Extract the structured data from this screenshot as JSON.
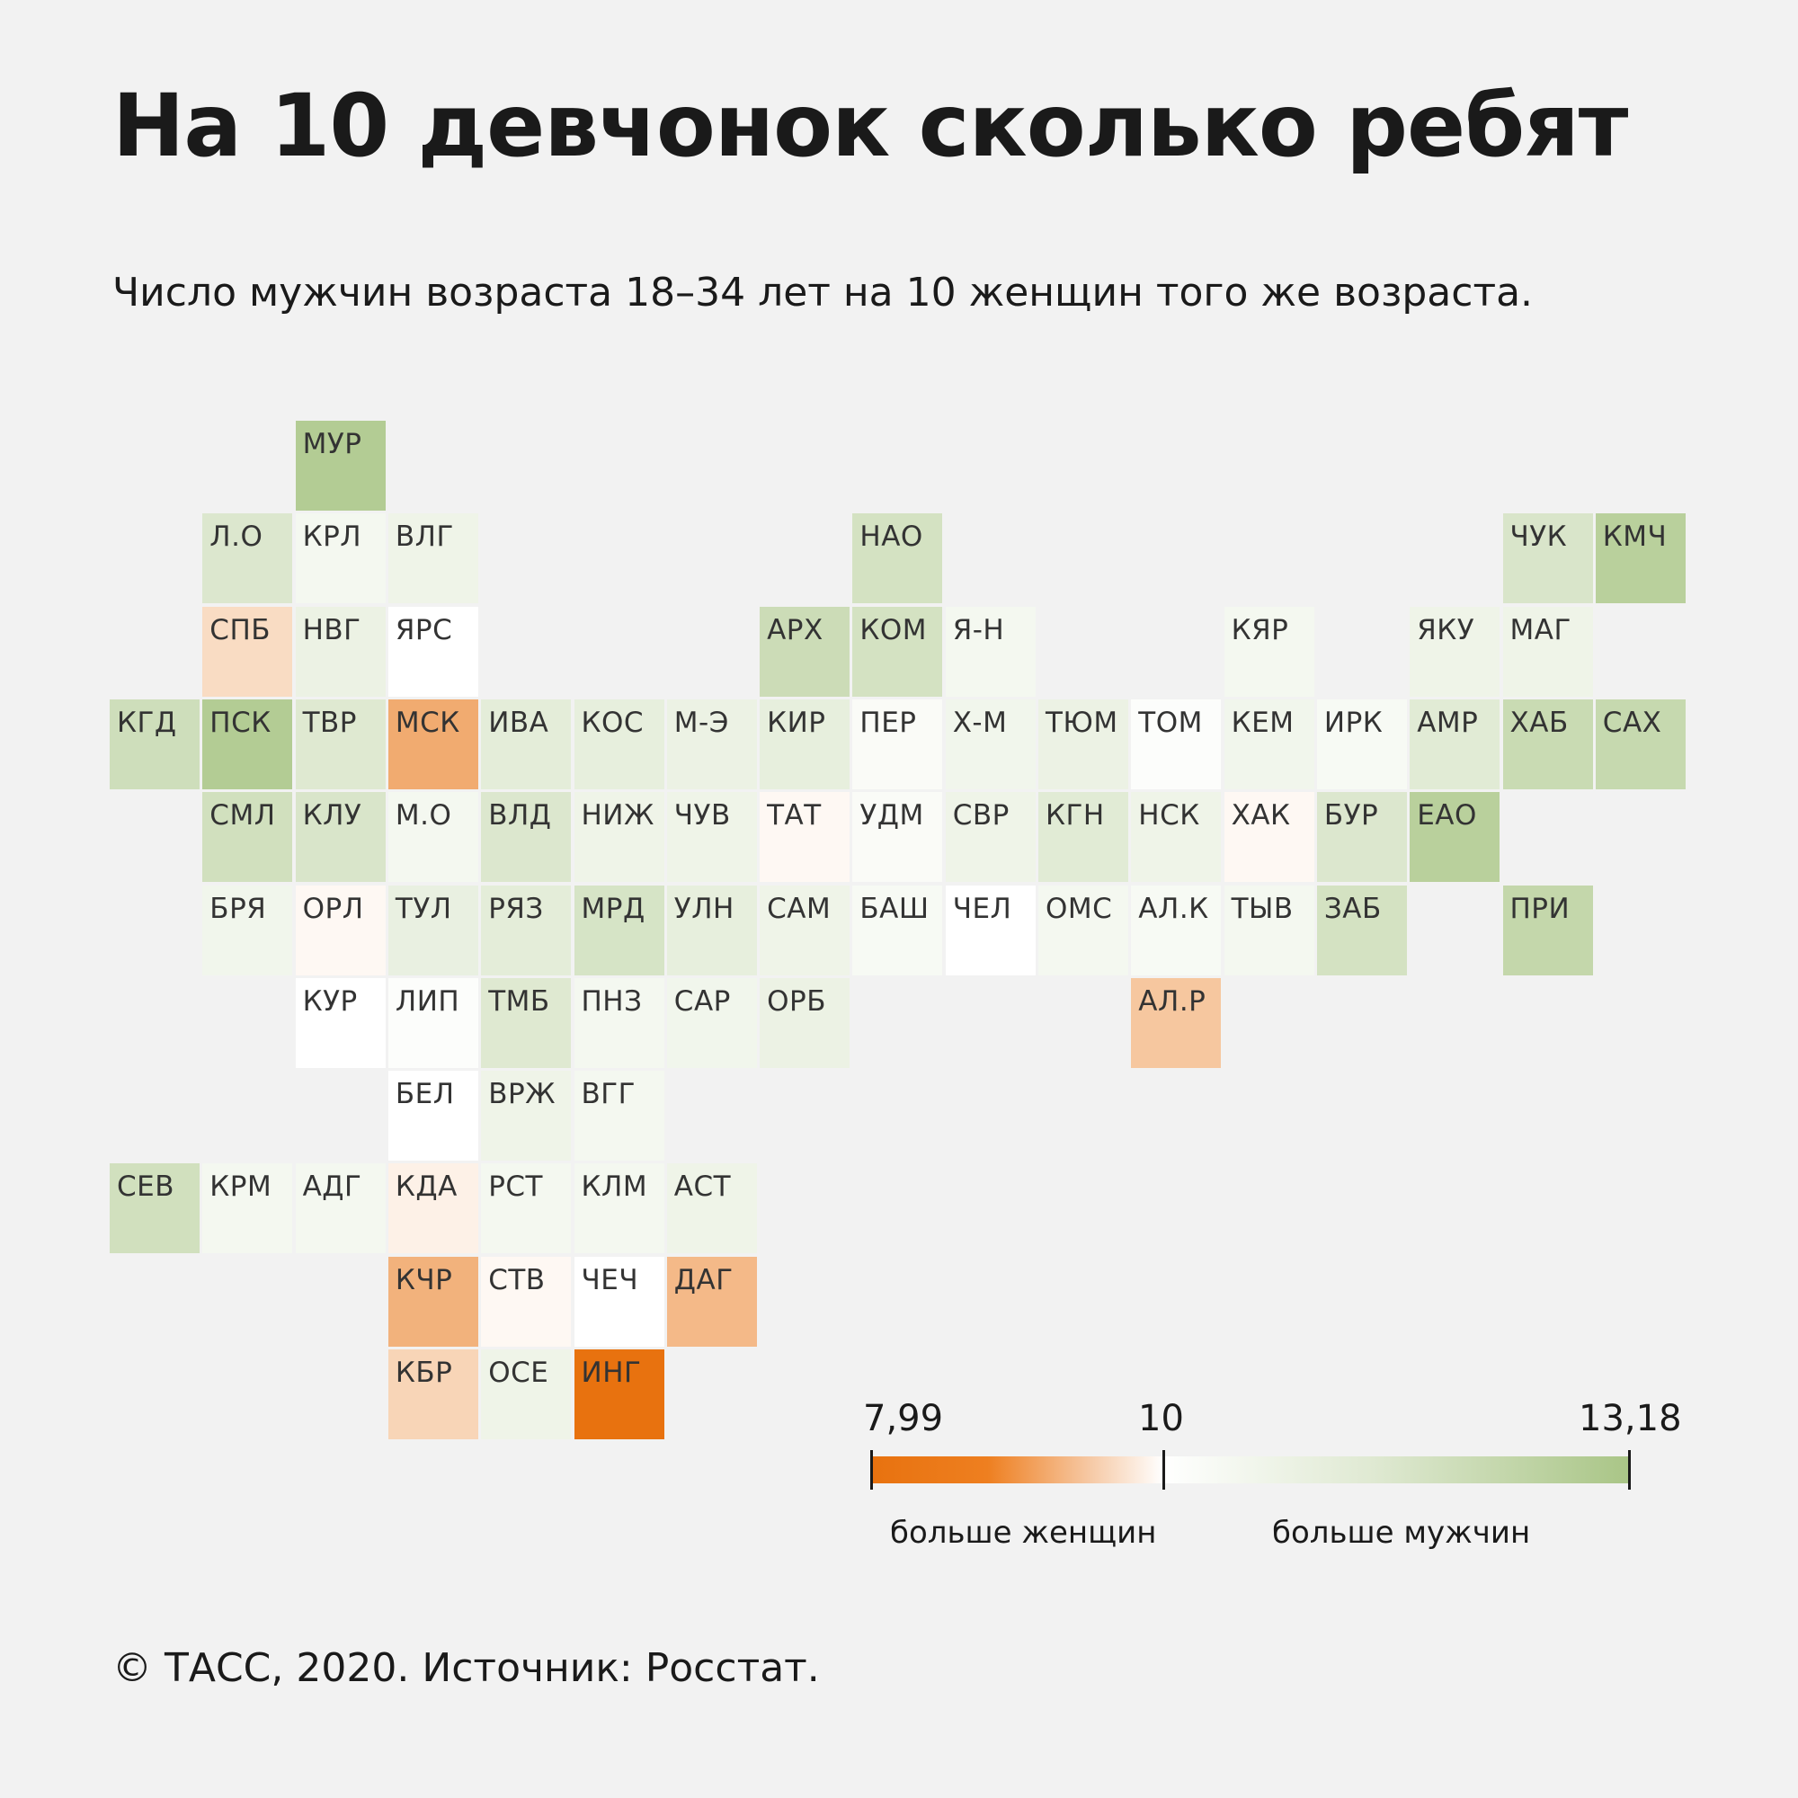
{
  "header": {
    "title": "На 10 девчонок сколько ребят",
    "subtitle": "Число мужчин возраста 18–34 лет на 10 женщин того же возраста."
  },
  "legend": {
    "min": "7,99",
    "mid": "10",
    "max": "13,18",
    "less_label": "больше женщин",
    "more_label": "больше мужчин",
    "colors": {
      "low": "#e8720f",
      "mid": "#ffffff",
      "high": "#a9c586"
    }
  },
  "footer": {
    "source": "© ТАСС, 2020. Источник: Росстат."
  },
  "map_data": {
    "type": "tile-map",
    "scale": {
      "min": 7.99,
      "mid": 10,
      "max": 13.18
    },
    "tiles": [
      {
        "label": "МУР",
        "row": 0,
        "col": 2,
        "value": 12.8
      },
      {
        "label": "Л.О",
        "row": 1,
        "col": 1,
        "value": 11.3
      },
      {
        "label": "КРЛ",
        "row": 1,
        "col": 2,
        "value": 10.4
      },
      {
        "label": "ВЛГ",
        "row": 1,
        "col": 3,
        "value": 10.6
      },
      {
        "label": "НАО",
        "row": 1,
        "col": 8,
        "value": 11.6
      },
      {
        "label": "ЧУК",
        "row": 1,
        "col": 15,
        "value": 11.4
      },
      {
        "label": "КМЧ",
        "row": 1,
        "col": 16,
        "value": 12.6
      },
      {
        "label": "СПБ",
        "row": 2,
        "col": 1,
        "value": 9.5
      },
      {
        "label": "НВГ",
        "row": 2,
        "col": 2,
        "value": 10.7
      },
      {
        "label": "ЯРС",
        "row": 2,
        "col": 3,
        "value": 10.0
      },
      {
        "label": "АРХ",
        "row": 2,
        "col": 7,
        "value": 11.9
      },
      {
        "label": "КОМ",
        "row": 2,
        "col": 8,
        "value": 11.6
      },
      {
        "label": "Я-Н",
        "row": 2,
        "col": 9,
        "value": 10.4
      },
      {
        "label": "КЯР",
        "row": 2,
        "col": 12,
        "value": 10.4
      },
      {
        "label": "ЯКУ",
        "row": 2,
        "col": 14,
        "value": 10.6
      },
      {
        "label": "МАГ",
        "row": 2,
        "col": 15,
        "value": 10.6
      },
      {
        "label": "КГД",
        "row": 3,
        "col": 0,
        "value": 11.8
      },
      {
        "label": "ПСК",
        "row": 3,
        "col": 1,
        "value": 12.8
      },
      {
        "label": "ТВР",
        "row": 3,
        "col": 2,
        "value": 11.2
      },
      {
        "label": "МСК",
        "row": 3,
        "col": 3,
        "value": 8.8
      },
      {
        "label": "ИВА",
        "row": 3,
        "col": 4,
        "value": 11.0
      },
      {
        "label": "КОС",
        "row": 3,
        "col": 5,
        "value": 10.9
      },
      {
        "label": "М-Э",
        "row": 3,
        "col": 6,
        "value": 10.7
      },
      {
        "label": "КИР",
        "row": 3,
        "col": 7,
        "value": 10.9
      },
      {
        "label": "ПЕР",
        "row": 3,
        "col": 8,
        "value": 10.2
      },
      {
        "label": "Х-М",
        "row": 3,
        "col": 9,
        "value": 10.5
      },
      {
        "label": "ТЮМ",
        "row": 3,
        "col": 10,
        "value": 10.7
      },
      {
        "label": "ТОМ",
        "row": 3,
        "col": 11,
        "value": 10.1
      },
      {
        "label": "КЕМ",
        "row": 3,
        "col": 12,
        "value": 10.5
      },
      {
        "label": "ИРК",
        "row": 3,
        "col": 13,
        "value": 10.3
      },
      {
        "label": "АМР",
        "row": 3,
        "col": 14,
        "value": 11.1
      },
      {
        "label": "ХАБ",
        "row": 3,
        "col": 15,
        "value": 12.0
      },
      {
        "label": "САХ",
        "row": 3,
        "col": 16,
        "value": 12.1
      },
      {
        "label": "СМЛ",
        "row": 4,
        "col": 1,
        "value": 11.7
      },
      {
        "label": "КЛУ",
        "row": 4,
        "col": 2,
        "value": 11.4
      },
      {
        "label": "М.О",
        "row": 4,
        "col": 3,
        "value": 10.4
      },
      {
        "label": "ВЛД",
        "row": 4,
        "col": 4,
        "value": 11.3
      },
      {
        "label": "НИЖ",
        "row": 4,
        "col": 5,
        "value": 10.6
      },
      {
        "label": "ЧУВ",
        "row": 4,
        "col": 6,
        "value": 10.6
      },
      {
        "label": "ТАТ",
        "row": 4,
        "col": 7,
        "value": 9.9
      },
      {
        "label": "УДМ",
        "row": 4,
        "col": 8,
        "value": 10.2
      },
      {
        "label": "СВР",
        "row": 4,
        "col": 9,
        "value": 10.6
      },
      {
        "label": "КГН",
        "row": 4,
        "col": 10,
        "value": 11.1
      },
      {
        "label": "НСК",
        "row": 4,
        "col": 11,
        "value": 10.6
      },
      {
        "label": "ХАК",
        "row": 4,
        "col": 12,
        "value": 9.9
      },
      {
        "label": "БУР",
        "row": 4,
        "col": 13,
        "value": 11.3
      },
      {
        "label": "ЕАО",
        "row": 4,
        "col": 14,
        "value": 12.6
      },
      {
        "label": "БРЯ",
        "row": 5,
        "col": 1,
        "value": 10.5
      },
      {
        "label": "ОРЛ",
        "row": 5,
        "col": 2,
        "value": 9.9
      },
      {
        "label": "ТУЛ",
        "row": 5,
        "col": 3,
        "value": 10.8
      },
      {
        "label": "РЯЗ",
        "row": 5,
        "col": 4,
        "value": 11.0
      },
      {
        "label": "МРД",
        "row": 5,
        "col": 5,
        "value": 11.5
      },
      {
        "label": "УЛН",
        "row": 5,
        "col": 6,
        "value": 10.9
      },
      {
        "label": "САМ",
        "row": 5,
        "col": 7,
        "value": 10.6
      },
      {
        "label": "БАШ",
        "row": 5,
        "col": 8,
        "value": 10.3
      },
      {
        "label": "ЧЕЛ",
        "row": 5,
        "col": 9,
        "value": 10.0
      },
      {
        "label": "ОМС",
        "row": 5,
        "col": 10,
        "value": 10.4
      },
      {
        "label": "АЛ.К",
        "row": 5,
        "col": 11,
        "value": 10.3
      },
      {
        "label": "ТЫВ",
        "row": 5,
        "col": 12,
        "value": 10.4
      },
      {
        "label": "ЗАБ",
        "row": 5,
        "col": 13,
        "value": 11.6
      },
      {
        "label": "ПРИ",
        "row": 5,
        "col": 15,
        "value": 12.2
      },
      {
        "label": "КУР",
        "row": 6,
        "col": 2,
        "value": 10.0
      },
      {
        "label": "ЛИП",
        "row": 6,
        "col": 3,
        "value": 10.1
      },
      {
        "label": "ТМБ",
        "row": 6,
        "col": 4,
        "value": 11.2
      },
      {
        "label": "ПНЗ",
        "row": 6,
        "col": 5,
        "value": 10.4
      },
      {
        "label": "САР",
        "row": 6,
        "col": 6,
        "value": 10.5
      },
      {
        "label": "ОРБ",
        "row": 6,
        "col": 7,
        "value": 10.7
      },
      {
        "label": "АЛ.Р",
        "row": 6,
        "col": 11,
        "value": 9.2
      },
      {
        "label": "БЕЛ",
        "row": 7,
        "col": 3,
        "value": 10.0
      },
      {
        "label": "ВРЖ",
        "row": 7,
        "col": 4,
        "value": 10.6
      },
      {
        "label": "ВГГ",
        "row": 7,
        "col": 5,
        "value": 10.4
      },
      {
        "label": "СЕВ",
        "row": 8,
        "col": 0,
        "value": 11.7
      },
      {
        "label": "КРМ",
        "row": 8,
        "col": 1,
        "value": 10.4
      },
      {
        "label": "АДГ",
        "row": 8,
        "col": 2,
        "value": 10.4
      },
      {
        "label": "КДА",
        "row": 8,
        "col": 3,
        "value": 9.8
      },
      {
        "label": "РСТ",
        "row": 8,
        "col": 4,
        "value": 10.4
      },
      {
        "label": "КЛМ",
        "row": 8,
        "col": 5,
        "value": 10.4
      },
      {
        "label": "АСТ",
        "row": 8,
        "col": 6,
        "value": 10.6
      },
      {
        "label": "КЧР",
        "row": 9,
        "col": 3,
        "value": 8.9
      },
      {
        "label": "СТВ",
        "row": 9,
        "col": 4,
        "value": 9.9
      },
      {
        "label": "ЧЕЧ",
        "row": 9,
        "col": 5,
        "value": 10.0
      },
      {
        "label": "ДАГ",
        "row": 9,
        "col": 6,
        "value": 9.0
      },
      {
        "label": "КБР",
        "row": 10,
        "col": 3,
        "value": 9.4
      },
      {
        "label": "ОСЕ",
        "row": 10,
        "col": 4,
        "value": 10.6
      },
      {
        "label": "ИНГ",
        "row": 10,
        "col": 5,
        "value": 7.99
      }
    ]
  }
}
